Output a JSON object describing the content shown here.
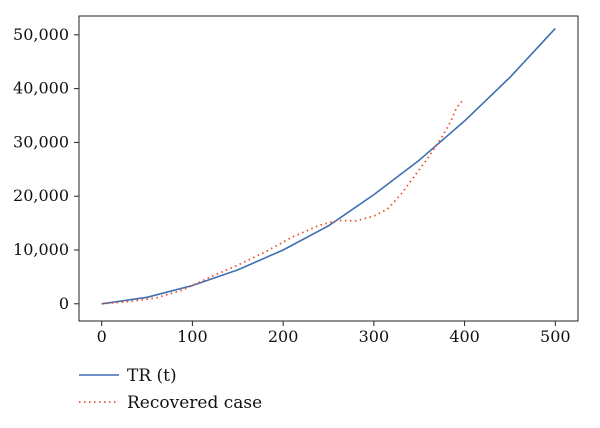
{
  "chart_data": {
    "type": "line",
    "title": "",
    "xlabel": "",
    "ylabel": "",
    "xlim": [
      -25,
      525
    ],
    "ylim": [
      -3200,
      53500
    ],
    "xticks": [
      0,
      100,
      200,
      300,
      400,
      500
    ],
    "xtick_labels": [
      "0",
      "100",
      "200",
      "300",
      "400",
      "500"
    ],
    "yticks": [
      0,
      10000,
      20000,
      30000,
      40000,
      50000
    ],
    "ytick_labels": [
      "0",
      "10,000",
      "20,000",
      "30,000",
      "40,000",
      "50,000"
    ],
    "grid": false,
    "legend_position": "bottom-left, below plot",
    "series": [
      {
        "name": "TR (t)",
        "color": "#3f6fb0",
        "style": "solid",
        "x": [
          0,
          50,
          100,
          150,
          200,
          250,
          300,
          350,
          400,
          450,
          500
        ],
        "y": [
          0,
          1200,
          3400,
          6300,
          10000,
          14500,
          20300,
          26700,
          34000,
          42100,
          51200
        ]
      },
      {
        "name": "Recovered case",
        "color": "#e8502a",
        "style": "dotted",
        "x": [
          0,
          30,
          60,
          90,
          120,
          150,
          180,
          210,
          240,
          260,
          280,
          300,
          315,
          330,
          345,
          360,
          375,
          385,
          390,
          395,
          400
        ],
        "y": [
          0,
          400,
          1100,
          2600,
          5000,
          7200,
          9600,
          12400,
          14600,
          15500,
          15400,
          16300,
          17600,
          20400,
          23800,
          27200,
          31000,
          34000,
          36000,
          37400,
          37900
        ]
      }
    ]
  }
}
